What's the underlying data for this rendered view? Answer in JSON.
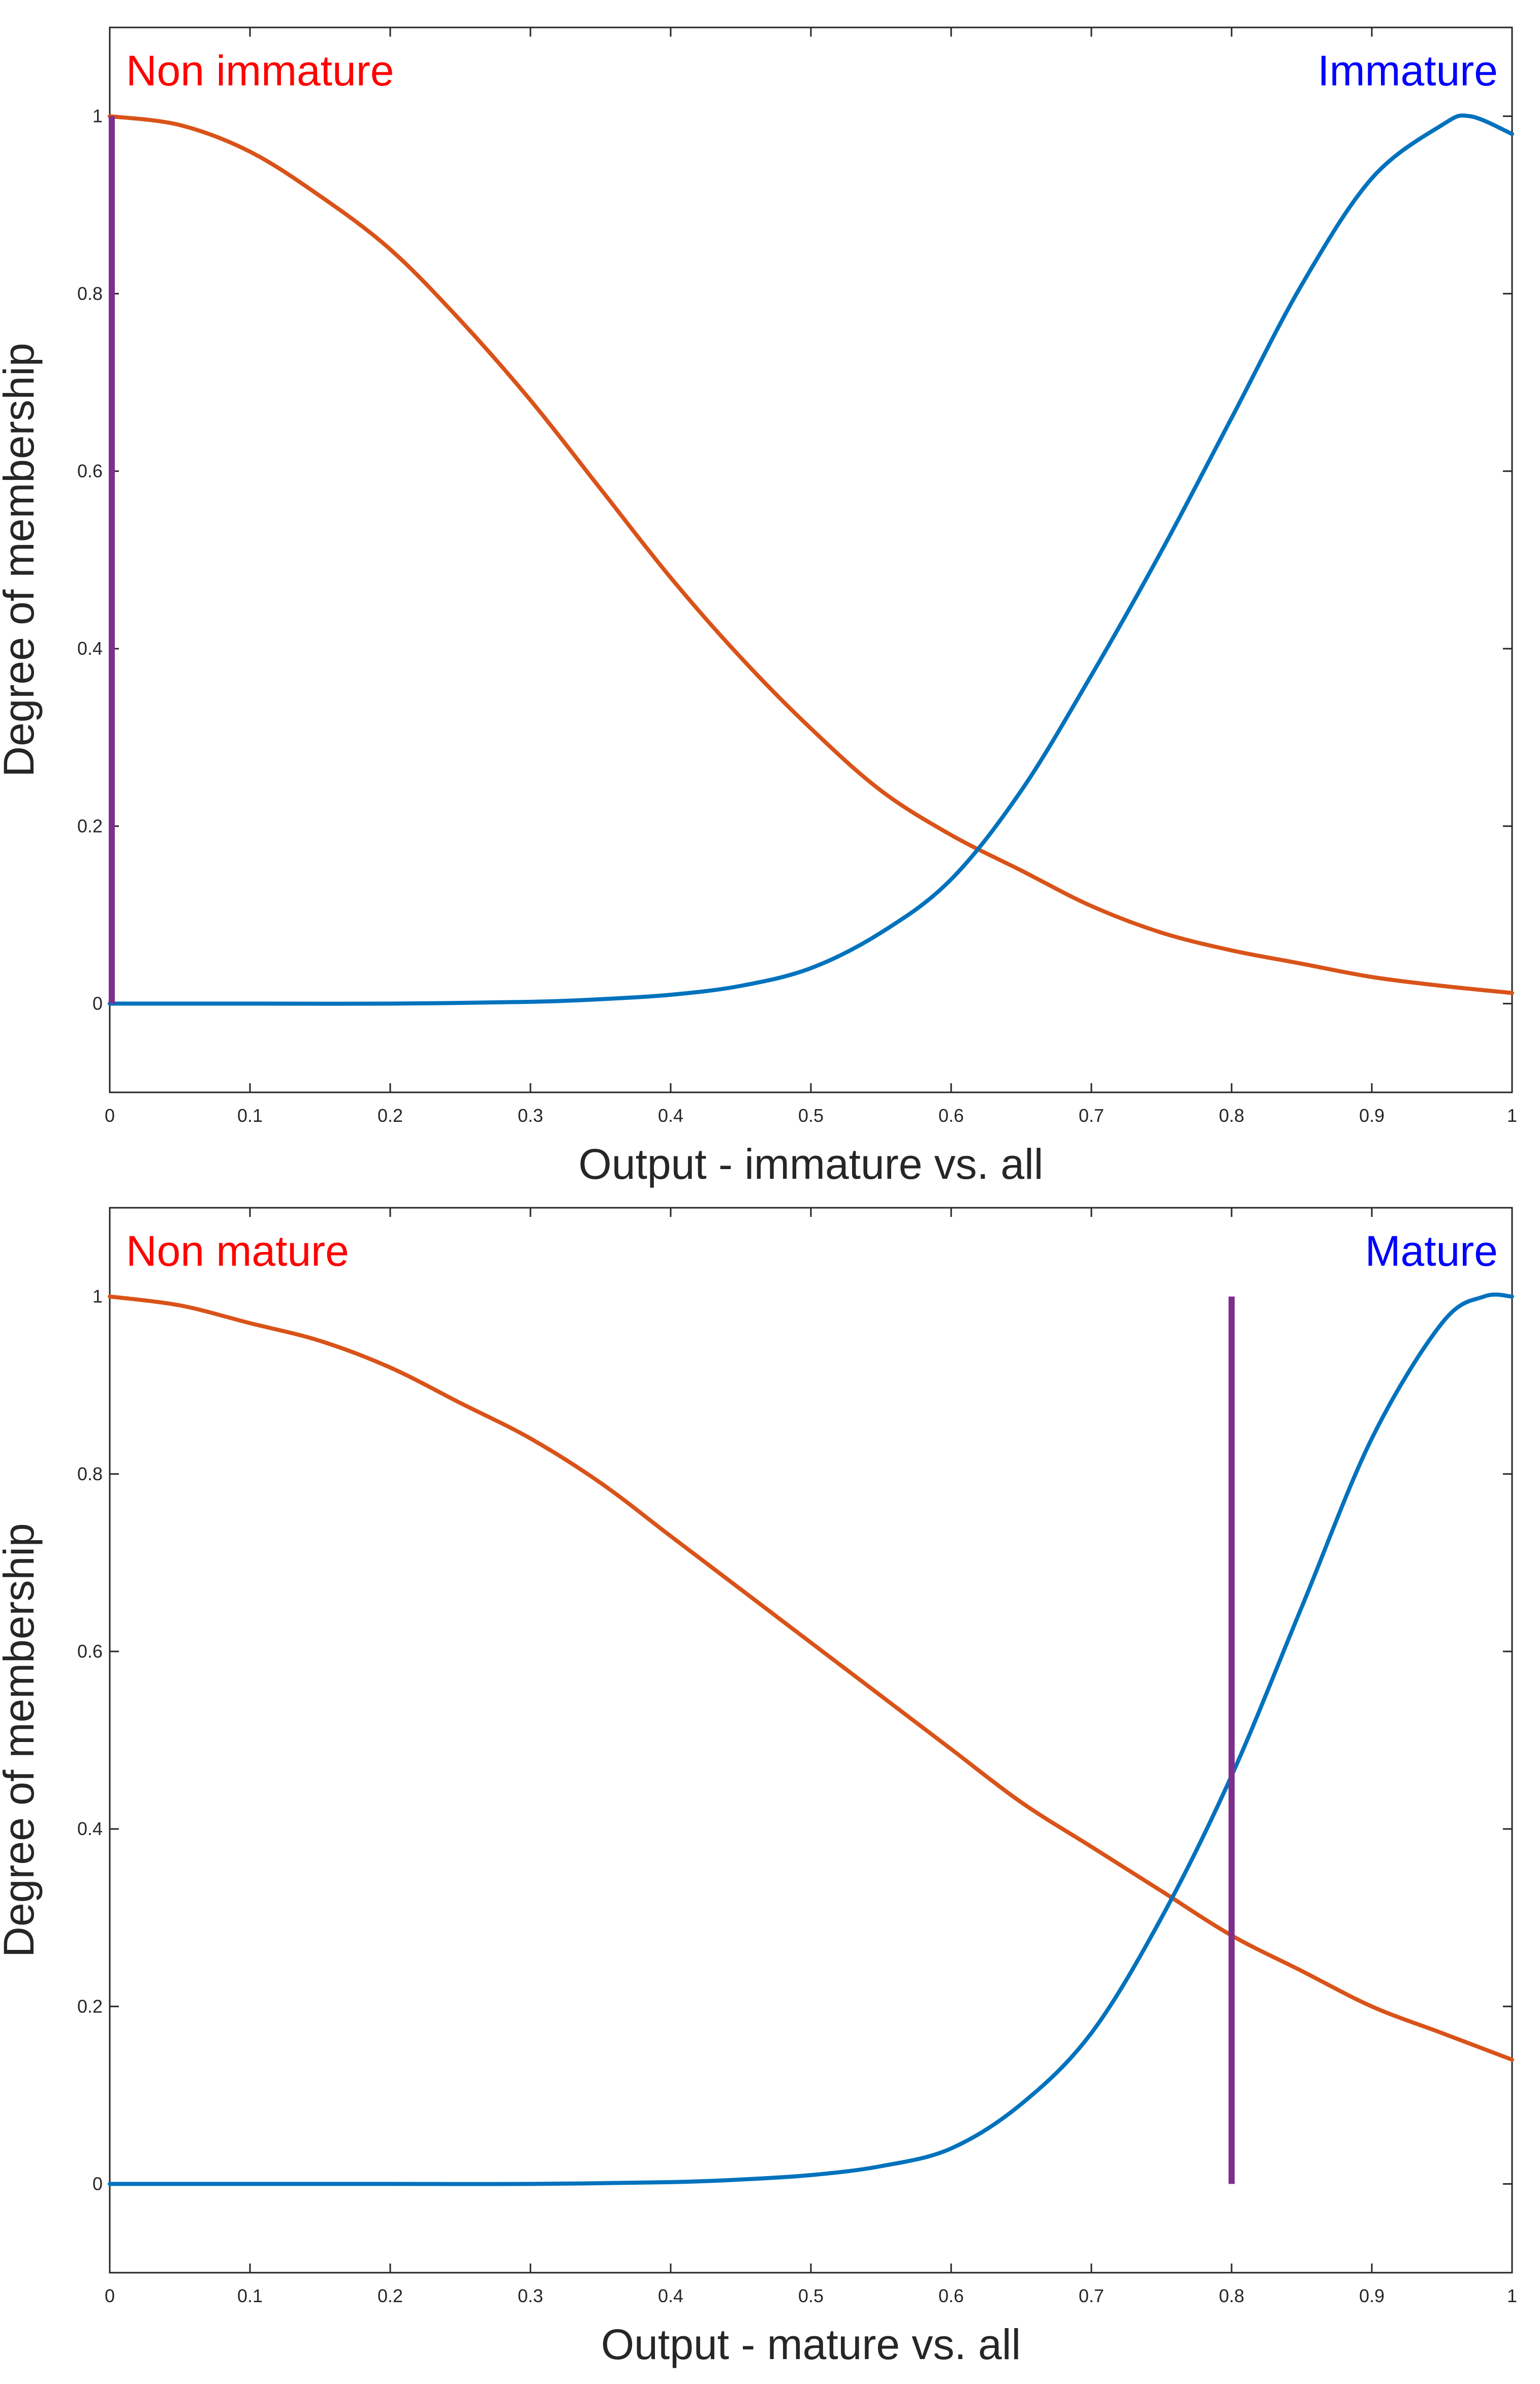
{
  "chart_data": [
    {
      "type": "line",
      "xlabel": "Output - immature vs. all",
      "ylabel": "Degree of membership",
      "xlim": [
        0,
        1
      ],
      "ylim": [
        -0.1,
        1.1
      ],
      "xticks": [
        "0",
        "0.1",
        "0.2",
        "0.3",
        "0.4",
        "0.5",
        "0.6",
        "0.7",
        "0.8",
        "0.9",
        "1"
      ],
      "yticks": [
        "0",
        "0.2",
        "0.4",
        "0.6",
        "0.8",
        "1"
      ],
      "annotations": [
        {
          "text": "Non immature",
          "color": "#ff0000",
          "position": "top-left"
        },
        {
          "text": "Immature",
          "color": "#0000ff",
          "position": "top-right"
        }
      ],
      "series": [
        {
          "name": "Non immature",
          "color": "#d95319",
          "x": [
            0,
            0.05,
            0.1,
            0.15,
            0.2,
            0.25,
            0.3,
            0.35,
            0.4,
            0.45,
            0.5,
            0.55,
            0.6,
            0.65,
            0.7,
            0.75,
            0.8,
            0.85,
            0.9,
            0.95,
            1.0
          ],
          "y": [
            1.0,
            0.99,
            0.96,
            0.91,
            0.85,
            0.77,
            0.68,
            0.58,
            0.48,
            0.39,
            0.31,
            0.24,
            0.19,
            0.15,
            0.11,
            0.08,
            0.06,
            0.045,
            0.03,
            0.02,
            0.012
          ]
        },
        {
          "name": "Immature",
          "color": "#0072bd",
          "x": [
            0,
            0.1,
            0.2,
            0.3,
            0.35,
            0.4,
            0.45,
            0.5,
            0.55,
            0.6,
            0.65,
            0.7,
            0.75,
            0.8,
            0.85,
            0.9,
            0.95,
            0.97,
            1.0
          ],
          "y": [
            0.0,
            0.0,
            0.0,
            0.002,
            0.005,
            0.01,
            0.02,
            0.04,
            0.08,
            0.14,
            0.24,
            0.37,
            0.51,
            0.66,
            0.81,
            0.93,
            0.99,
            1.0,
            0.98
          ]
        }
      ],
      "marker": {
        "x": 0,
        "y_range": [
          0,
          1
        ],
        "color": "#7e2f8e"
      }
    },
    {
      "type": "line",
      "xlabel": "Output - mature vs. all",
      "ylabel": "Degree of membership",
      "xlim": [
        0,
        1
      ],
      "ylim": [
        -0.1,
        1.1
      ],
      "xticks": [
        "0",
        "0.1",
        "0.2",
        "0.3",
        "0.4",
        "0.5",
        "0.6",
        "0.7",
        "0.8",
        "0.9",
        "1"
      ],
      "yticks": [
        "0",
        "0.2",
        "0.4",
        "0.6",
        "0.8",
        "1"
      ],
      "annotations": [
        {
          "text": "Non mature",
          "color": "#ff0000",
          "position": "top-left"
        },
        {
          "text": "Mature",
          "color": "#0000ff",
          "position": "top-right"
        }
      ],
      "series": [
        {
          "name": "Non mature",
          "color": "#d95319",
          "x": [
            0,
            0.05,
            0.1,
            0.15,
            0.2,
            0.25,
            0.3,
            0.35,
            0.4,
            0.45,
            0.5,
            0.55,
            0.6,
            0.65,
            0.7,
            0.75,
            0.8,
            0.85,
            0.9,
            0.95,
            1.0
          ],
          "y": [
            1.0,
            0.99,
            0.97,
            0.95,
            0.92,
            0.88,
            0.84,
            0.79,
            0.73,
            0.67,
            0.61,
            0.55,
            0.49,
            0.43,
            0.38,
            0.33,
            0.28,
            0.24,
            0.2,
            0.17,
            0.14
          ]
        },
        {
          "name": "Mature",
          "color": "#0072bd",
          "x": [
            0,
            0.1,
            0.2,
            0.3,
            0.4,
            0.45,
            0.5,
            0.55,
            0.6,
            0.65,
            0.7,
            0.75,
            0.8,
            0.85,
            0.9,
            0.95,
            0.98,
            1.0
          ],
          "y": [
            0.0,
            0.0,
            0.0,
            0.0,
            0.002,
            0.005,
            0.01,
            0.02,
            0.04,
            0.09,
            0.17,
            0.3,
            0.46,
            0.65,
            0.84,
            0.97,
            1.0,
            1.0
          ]
        }
      ],
      "marker": {
        "x": 0.8,
        "y_range": [
          0,
          1
        ],
        "color": "#7e2f8e"
      }
    }
  ]
}
